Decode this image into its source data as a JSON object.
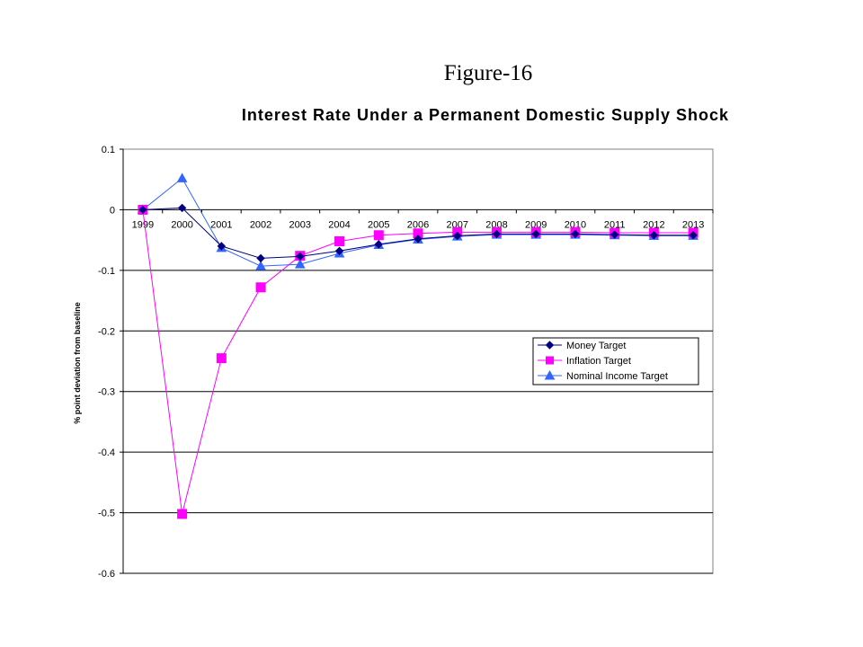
{
  "figure_label": "Figure-16",
  "chart_data": {
    "type": "line",
    "title": "Interest Rate Under a Permanent Domestic Supply Shock",
    "xlabel": "",
    "ylabel": "% point deviation from baseline",
    "categories": [
      "1999",
      "2000",
      "2001",
      "2002",
      "2003",
      "2004",
      "2005",
      "2006",
      "2007",
      "2008",
      "2009",
      "2010",
      "2011",
      "2012",
      "2013"
    ],
    "ylim": [
      -0.6,
      0.1
    ],
    "yticks": [
      0.1,
      0,
      -0.1,
      -0.2,
      -0.3,
      -0.4,
      -0.5,
      -0.6
    ],
    "ytick_labels": [
      "0.1",
      "0",
      "-0.1",
      "-0.2",
      "-0.3",
      "-0.4",
      "-0.5",
      "-0.6"
    ],
    "grid": "horizontal",
    "legend_position": "right",
    "series": [
      {
        "name": "Money Target",
        "color": "#000080",
        "marker": "diamond",
        "values": [
          0,
          0.003,
          -0.06,
          -0.08,
          -0.077,
          -0.068,
          -0.057,
          -0.048,
          -0.043,
          -0.04,
          -0.04,
          -0.04,
          -0.041,
          -0.042,
          -0.042
        ]
      },
      {
        "name": "Inflation Target",
        "color": "#ff00ff",
        "marker": "square",
        "values": [
          0,
          -0.502,
          -0.245,
          -0.128,
          -0.076,
          -0.052,
          -0.042,
          -0.039,
          -0.037,
          -0.037,
          -0.037,
          -0.037,
          -0.038,
          -0.038,
          -0.038
        ]
      },
      {
        "name": "Nominal Income Target",
        "color": "#3366ff",
        "marker": "triangle",
        "values": [
          0,
          0.052,
          -0.063,
          -0.093,
          -0.09,
          -0.072,
          -0.058,
          -0.049,
          -0.044,
          -0.041,
          -0.041,
          -0.041,
          -0.042,
          -0.043,
          -0.043
        ]
      }
    ]
  }
}
